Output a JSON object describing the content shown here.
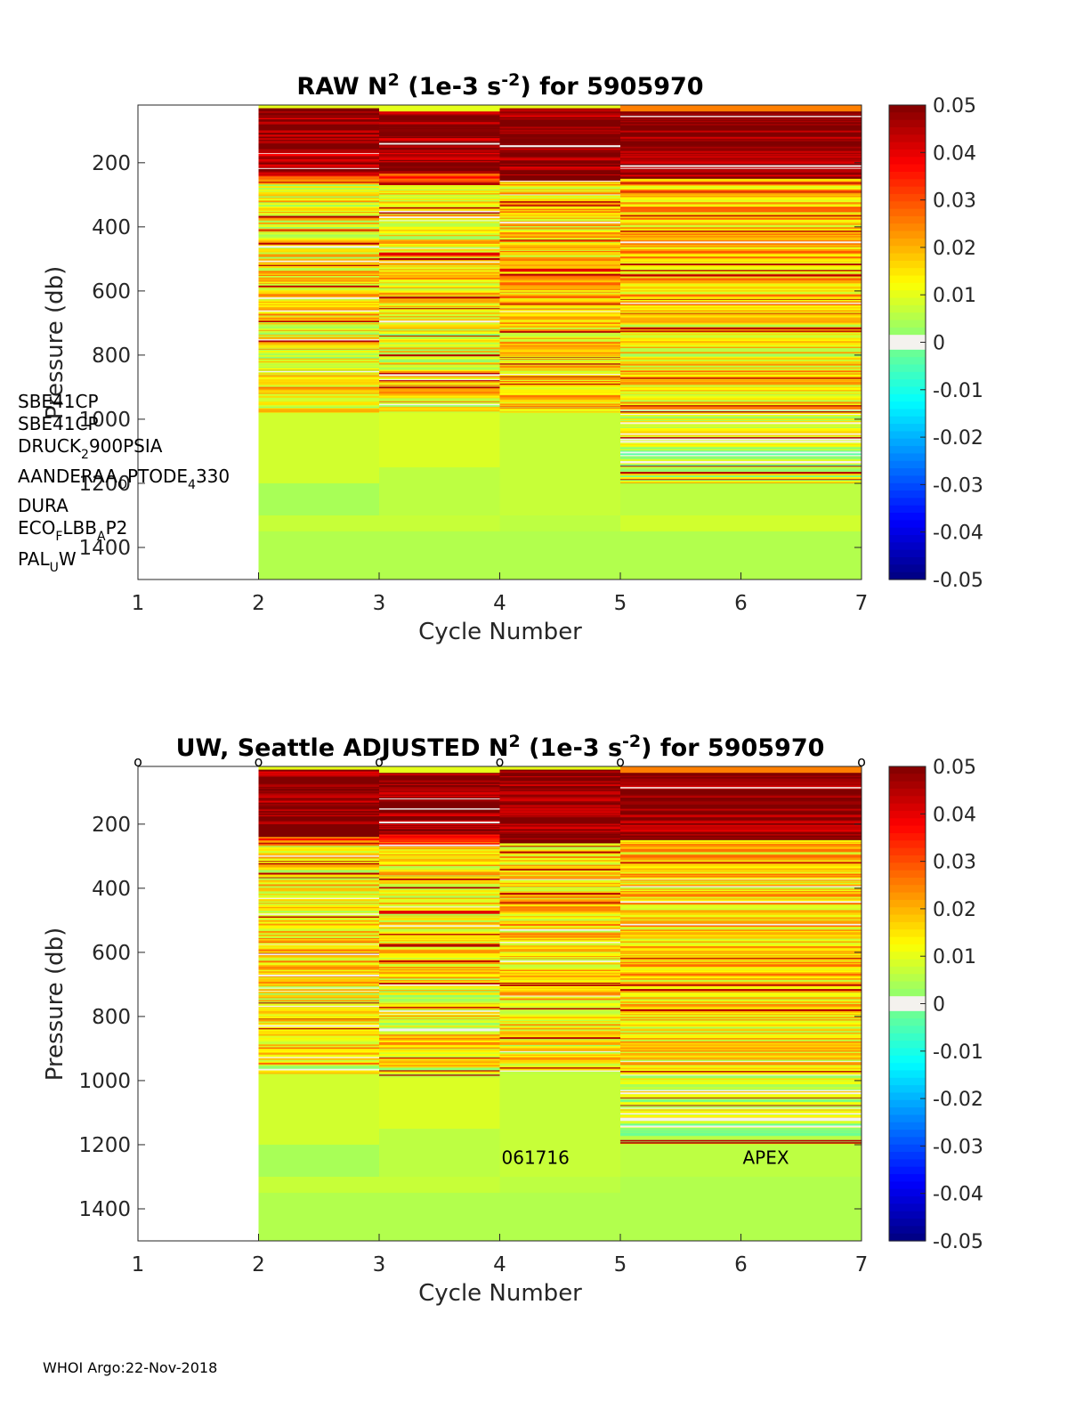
{
  "chart_data": [
    {
      "type": "heatmap",
      "title": {
        "prefix": "RAW N",
        "sup1": "2",
        "mid": " (1e-3 s",
        "sup2": "-2",
        "suffix": ") for 5905970"
      },
      "xlabel": "Cycle Number",
      "ylabel": "Pressure (db)",
      "xlim": [
        1,
        7
      ],
      "ylim": [
        1500,
        20
      ],
      "y_reversed": true,
      "xticks": [
        "1",
        "2",
        "3",
        "4",
        "5",
        "6",
        "7"
      ],
      "yticks": [
        "200",
        "400",
        "600",
        "800",
        "1000",
        "1200",
        "1400"
      ],
      "ytick_values": [
        200,
        400,
        600,
        800,
        1000,
        1200,
        1400
      ],
      "colorbar": {
        "min": -0.05,
        "max": 0.05,
        "colormap": "jet",
        "ticks": [
          "0.05",
          "0.04",
          "0.03",
          "0.02",
          "0.01",
          "0",
          "-0.01",
          "-0.02",
          "-0.03",
          "-0.04",
          "-0.05"
        ]
      },
      "columns": [
        {
          "x0": 2,
          "x1": 3,
          "profile": [
            [
              20,
              30,
              0.01
            ],
            [
              30,
              60,
              0.05
            ],
            [
              60,
              170,
              0.05
            ],
            [
              170,
              200,
              0.048
            ],
            [
              200,
              240,
              0.05
            ],
            [
              240,
              265,
              0.03
            ],
            [
              265,
              500,
              0.013
            ],
            [
              500,
              700,
              0.016
            ],
            [
              700,
              850,
              0.012
            ],
            [
              850,
              950,
              0.017
            ],
            [
              950,
              980,
              0.01
            ],
            [
              980,
              1035,
              0.008
            ],
            [
              1035,
              1200,
              0.008
            ],
            [
              1200,
              1300,
              0.004
            ],
            [
              1300,
              1350,
              0.007
            ],
            [
              1350,
              1500,
              0.005
            ]
          ],
          "seed": 3
        },
        {
          "x0": 3,
          "x1": 4,
          "profile": [
            [
              20,
              40,
              0.01
            ],
            [
              40,
              200,
              0.05
            ],
            [
              200,
              230,
              0.045
            ],
            [
              230,
              270,
              0.035
            ],
            [
              270,
              480,
              0.014
            ],
            [
              480,
              490,
              0.04
            ],
            [
              490,
              700,
              0.015
            ],
            [
              700,
              850,
              0.012
            ],
            [
              850,
              950,
              0.016
            ],
            [
              950,
              980,
              0.01
            ],
            [
              980,
              1150,
              0.009
            ],
            [
              1150,
              1300,
              0.006
            ],
            [
              1300,
              1350,
              0.007
            ],
            [
              1350,
              1500,
              0.005
            ]
          ],
          "seed": 7
        },
        {
          "x0": 4,
          "x1": 5,
          "profile": [
            [
              20,
              30,
              0.01
            ],
            [
              30,
              260,
              0.05
            ],
            [
              260,
              530,
              0.016
            ],
            [
              530,
              540,
              0.04
            ],
            [
              540,
              700,
              0.018
            ],
            [
              700,
              850,
              0.015
            ],
            [
              850,
              980,
              0.016
            ],
            [
              980,
              1300,
              0.007
            ],
            [
              1300,
              1350,
              0.006
            ],
            [
              1350,
              1500,
              0.005
            ]
          ],
          "seed": 11
        },
        {
          "x0": 5,
          "x1": 7,
          "profile": [
            [
              20,
              40,
              0.025
            ],
            [
              40,
              250,
              0.05
            ],
            [
              250,
              380,
              0.02
            ],
            [
              380,
              700,
              0.018
            ],
            [
              700,
              850,
              0.014
            ],
            [
              850,
              970,
              0.016
            ],
            [
              970,
              1200,
              0.007
            ],
            [
              1200,
              1300,
              0.006
            ],
            [
              1300,
              1350,
              0.008
            ],
            [
              1350,
              1500,
              0.005
            ]
          ],
          "seed": 19
        }
      ]
    },
    {
      "type": "heatmap",
      "title": {
        "prefix": "UW, Seattle  ADJUSTED N",
        "sup1": "2",
        "mid": " (1e-3 s",
        "sup2": "-2",
        "suffix": ") for 5905970"
      },
      "xlabel": "Cycle Number",
      "ylabel": "Pressure (db)",
      "xlim": [
        1,
        7
      ],
      "ylim": [
        1500,
        20
      ],
      "y_reversed": true,
      "xticks": [
        "1",
        "2",
        "3",
        "4",
        "5",
        "6",
        "7"
      ],
      "yticks": [
        "200",
        "400",
        "600",
        "800",
        "1000",
        "1200",
        "1400"
      ],
      "ytick_values": [
        200,
        400,
        600,
        800,
        1000,
        1200,
        1400
      ],
      "colorbar": {
        "min": -0.05,
        "max": 0.05,
        "colormap": "jet",
        "ticks": [
          "0.05",
          "0.04",
          "0.03",
          "0.02",
          "0.01",
          "0",
          "-0.01",
          "-0.02",
          "-0.03",
          "-0.04",
          "-0.05"
        ]
      },
      "columns": [
        {
          "x0": 2,
          "x1": 3,
          "profile": [
            [
              20,
              30,
              0.01
            ],
            [
              30,
              60,
              0.05
            ],
            [
              60,
              170,
              0.05
            ],
            [
              170,
              200,
              0.048
            ],
            [
              200,
              240,
              0.05
            ],
            [
              240,
              265,
              0.03
            ],
            [
              265,
              500,
              0.013
            ],
            [
              500,
              700,
              0.016
            ],
            [
              700,
              850,
              0.012
            ],
            [
              850,
              950,
              0.017
            ],
            [
              950,
              980,
              0.01
            ],
            [
              980,
              1035,
              0.008
            ],
            [
              1035,
              1200,
              0.008
            ],
            [
              1200,
              1300,
              0.004
            ],
            [
              1300,
              1350,
              0.007
            ],
            [
              1350,
              1500,
              0.005
            ]
          ],
          "seed": 5
        },
        {
          "x0": 3,
          "x1": 4,
          "profile": [
            [
              20,
              40,
              0.01
            ],
            [
              40,
              200,
              0.05
            ],
            [
              200,
              230,
              0.045
            ],
            [
              230,
              270,
              0.035
            ],
            [
              270,
              470,
              0.014
            ],
            [
              470,
              480,
              0.04
            ],
            [
              480,
              700,
              0.015
            ],
            [
              700,
              850,
              0.012
            ],
            [
              850,
              950,
              0.016
            ],
            [
              950,
              990,
              0.01
            ],
            [
              990,
              1150,
              0.009
            ],
            [
              1150,
              1300,
              0.006
            ],
            [
              1300,
              1350,
              0.007
            ],
            [
              1350,
              1500,
              0.005
            ]
          ],
          "seed": 9
        },
        {
          "x0": 4,
          "x1": 5,
          "profile": [
            [
              20,
              30,
              0.01
            ],
            [
              30,
              260,
              0.05
            ],
            [
              260,
              700,
              0.016
            ],
            [
              700,
              850,
              0.015
            ],
            [
              850,
              980,
              0.014
            ],
            [
              980,
              1300,
              0.007
            ],
            [
              1300,
              1350,
              0.006
            ],
            [
              1350,
              1500,
              0.005
            ]
          ],
          "seed": 13
        },
        {
          "x0": 5,
          "x1": 7,
          "profile": [
            [
              20,
              40,
              0.025
            ],
            [
              40,
              250,
              0.05
            ],
            [
              250,
              380,
              0.018
            ],
            [
              380,
              700,
              0.017
            ],
            [
              700,
              850,
              0.014
            ],
            [
              850,
              970,
              0.016
            ],
            [
              970,
              1200,
              0.007
            ],
            [
              1200,
              1300,
              0.006
            ],
            [
              1300,
              1500,
              0.005
            ]
          ],
          "seed": 23
        }
      ],
      "markers": {
        "symbol": "o",
        "x": [
          1,
          2,
          3,
          4,
          5,
          7
        ]
      },
      "annotations": [
        {
          "text": "061716",
          "x": 4,
          "y": 1215
        },
        {
          "text": "APEX",
          "x": 6,
          "y": 1215
        }
      ]
    }
  ],
  "sensor_list": [
    {
      "base": "SBE41CP"
    },
    {
      "base": "SBE41CP"
    },
    {
      "base": "DRUCK",
      "sub": "2",
      "rest": "900PSIA"
    },
    {
      "base": "AANDERAA",
      "sub": "O",
      "rest": "PTODE",
      "sub2": "4",
      "rest2": "330"
    },
    {
      "base": "DURA"
    },
    {
      "base": "ECO",
      "sub": "F",
      "rest": "LBB",
      "sub2": "A",
      "rest2": "P2"
    },
    {
      "base": "PAL",
      "sub": "U",
      "rest": "W"
    }
  ],
  "footer": "WHOI Argo:22-Nov-2018"
}
